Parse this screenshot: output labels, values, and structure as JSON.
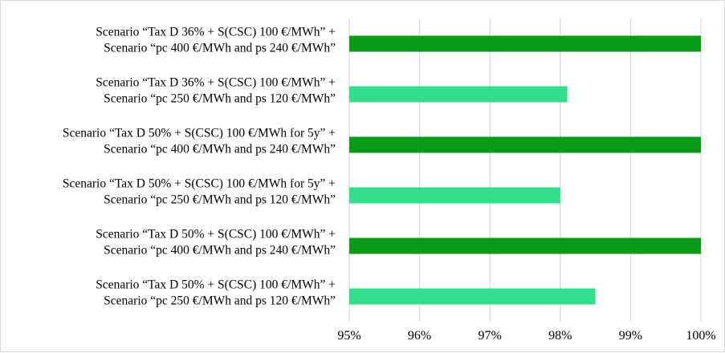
{
  "chart_data": {
    "type": "bar",
    "orientation": "horizontal",
    "categories": [
      [
        "Scenario “Tax D 36% + S(CSC) 100 €/MWh” +",
        "Scenario “pc 400 €/MWh and ps 240 €/MWh”"
      ],
      [
        "Scenario “Tax D 36% + S(CSC) 100 €/MWh” +",
        "Scenario “pc 250 €/MWh and ps 120 €/MWh”"
      ],
      [
        "Scenario “Tax D 50% + S(CSC) 100 €/MWh for 5y” +",
        "Scenario “pc 400 €/MWh and ps 240 €/MWh”"
      ],
      [
        "Scenario “Tax D 50% + S(CSC) 100 €/MWh for 5y” +",
        "Scenario “pc 250 €/MWh and ps 120 €/MWh”"
      ],
      [
        "Scenario “Tax D 50% + S(CSC) 100 €/MWh” +",
        "Scenario “pc 400 €/MWh and ps 240 €/MWh”"
      ],
      [
        "Scenario “Tax D 50% + S(CSC) 100 €/MWh” +",
        "Scenario “pc 250 €/MWh and ps 120 €/MWh”"
      ]
    ],
    "values": [
      100.0,
      98.1,
      100.0,
      98.0,
      100.0,
      98.5
    ],
    "xlim": [
      95,
      100
    ],
    "x_ticks": [
      "95%",
      "96%",
      "97%",
      "98%",
      "99%",
      "100%"
    ],
    "grid": true,
    "legend": "none",
    "colors": {
      "dark_bar": "#0c9b19",
      "light_bar": "#33dd8a",
      "gridline": "#d9d9d9"
    },
    "bar_colors": [
      "dark_bar",
      "light_bar",
      "dark_bar",
      "light_bar",
      "dark_bar",
      "light_bar"
    ]
  }
}
